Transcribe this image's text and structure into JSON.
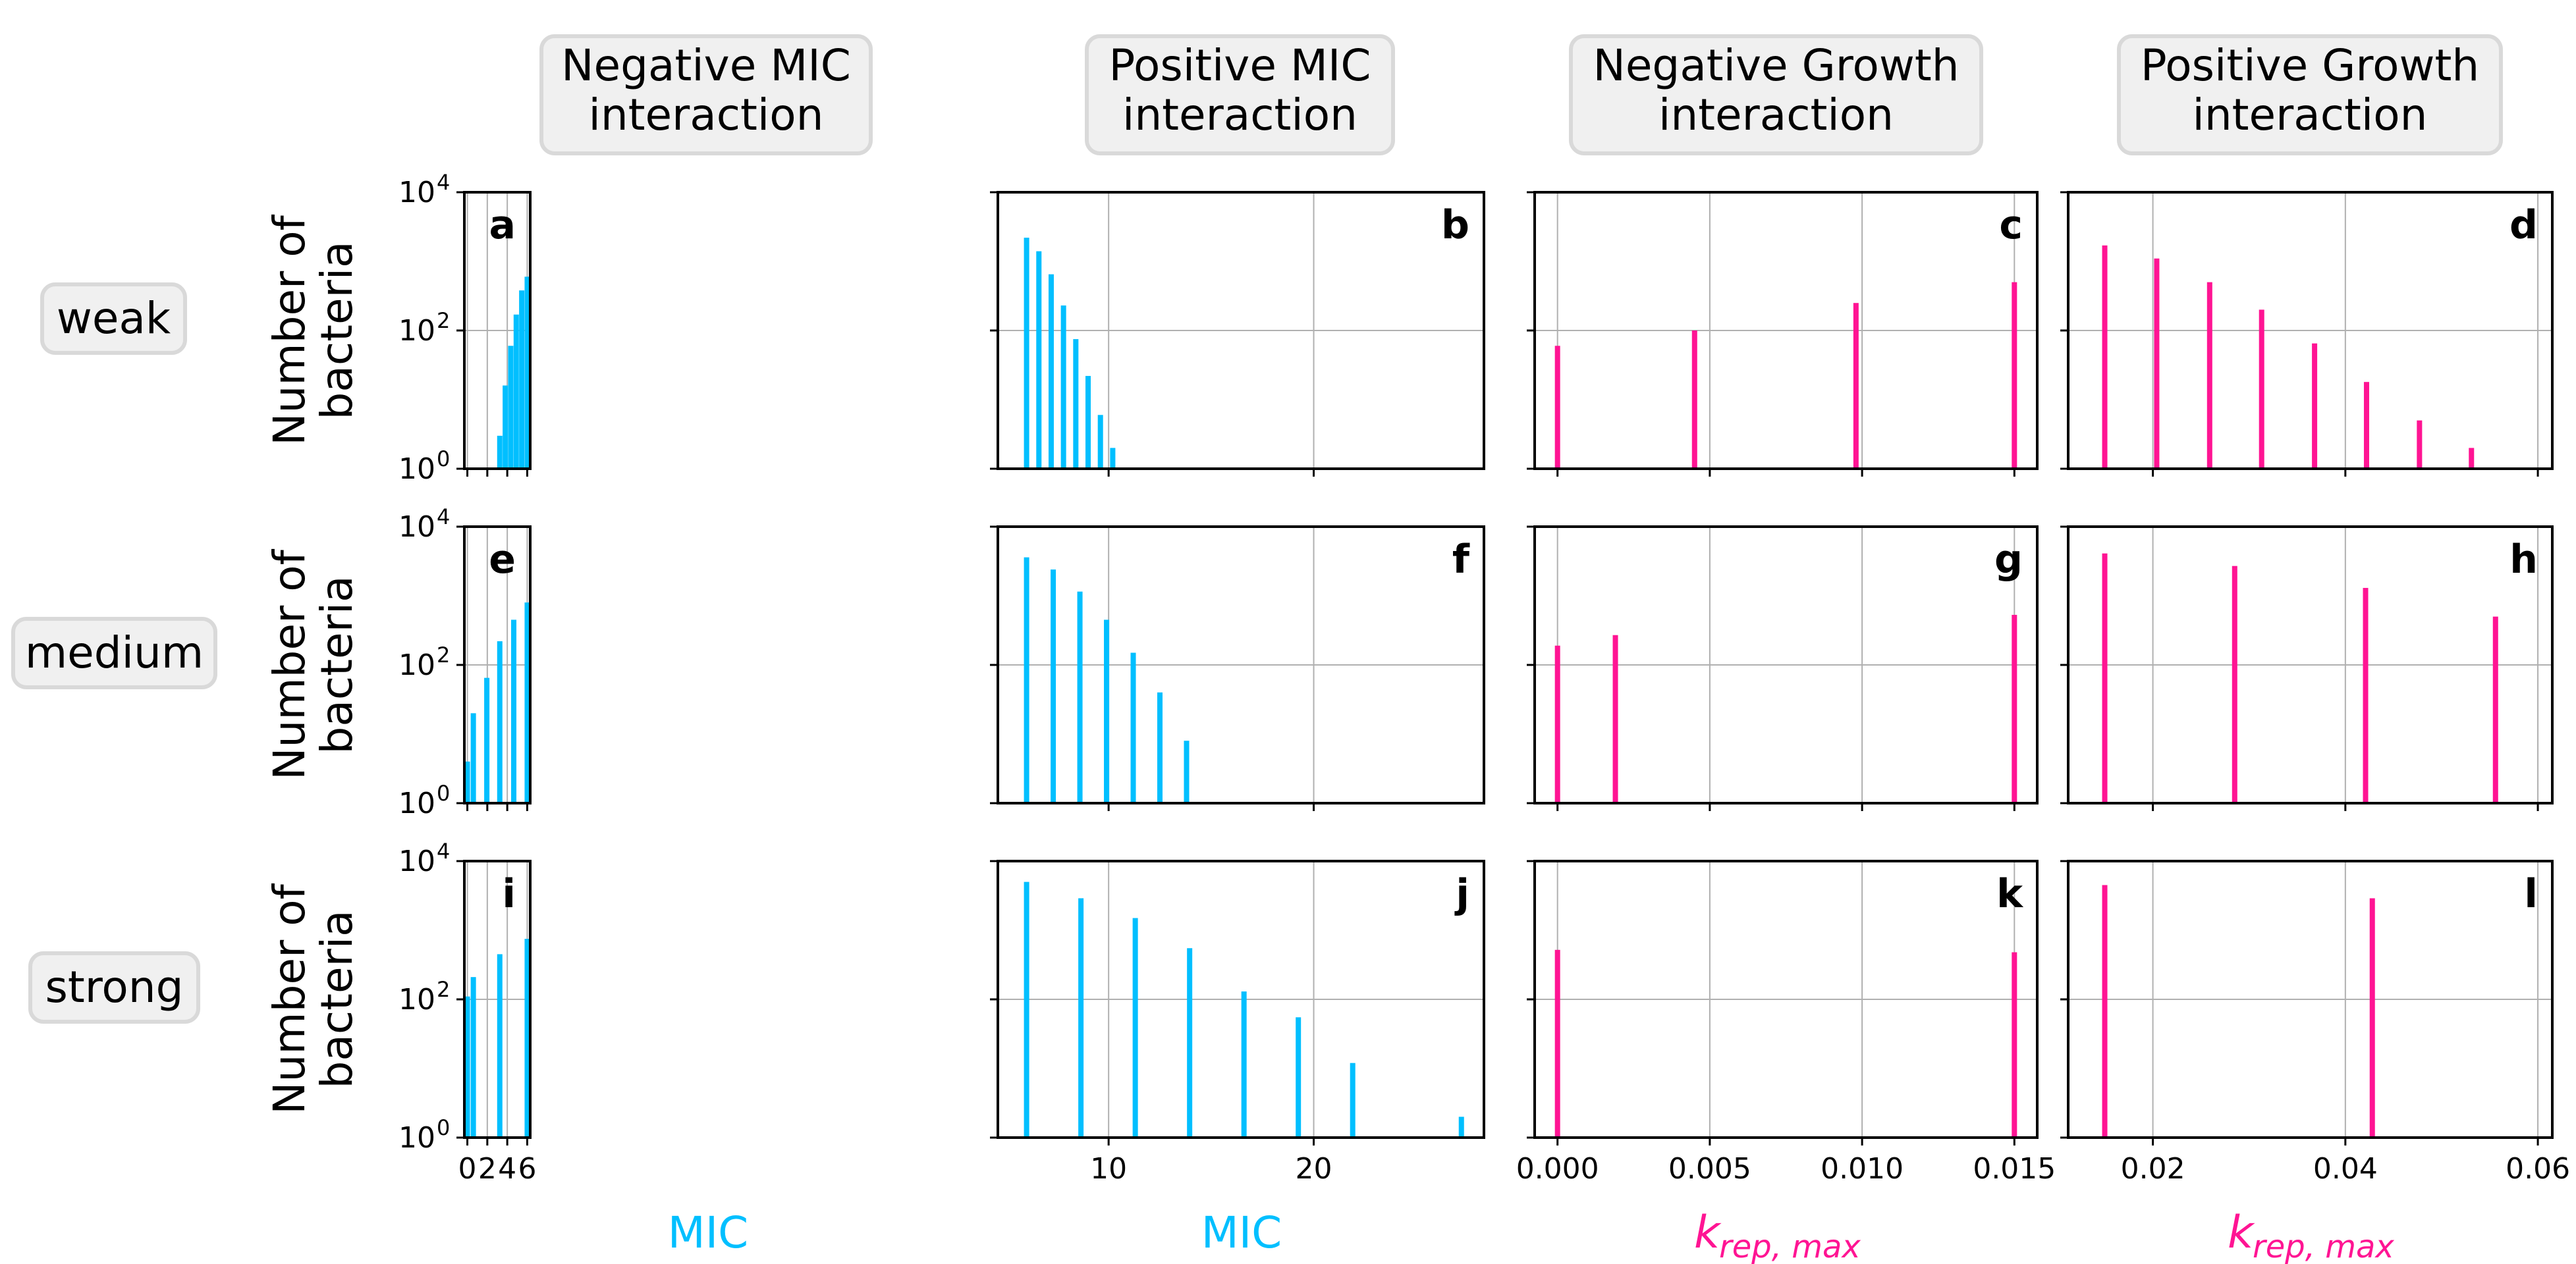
{
  "col_headers": [
    "Negative MIC\n interaction",
    "Positive MIC\n interaction",
    "Negative Growth\n interaction",
    "Positive Growth\n interaction"
  ],
  "row_labels": [
    "weak",
    "medium",
    "strong"
  ],
  "ylabel_lines": [
    "Number of",
    "bacteria"
  ],
  "xlabels": [
    "MIC",
    "MIC",
    "k_rep,max",
    "k_rep,max"
  ],
  "xlabel_display": {
    "main": "k",
    "sub": "rep, max"
  },
  "yticks": {
    "values": [
      1,
      100,
      10000
    ],
    "labels": [
      "10",
      "10",
      "10"
    ],
    "exponents": [
      "0",
      "2",
      "4"
    ]
  },
  "colors": {
    "mic": "#00BFFF",
    "growth": "#FF1493",
    "grid": "#b0b0b0",
    "header_bg": "#F0F0F0",
    "header_border": "#D9D9D9"
  },
  "chart_data": [
    {
      "type": "bar",
      "panel": "a",
      "row": "weak",
      "column": "Negative MIC interaction",
      "xlabel": "MIC",
      "ylabel": "Number of bacteria",
      "yscale": "log",
      "xlim": [
        -0.3,
        6.3
      ],
      "ylim": [
        1,
        10000
      ],
      "xticks": [
        0,
        2,
        4,
        6
      ],
      "xtick_labels": [
        "0",
        "2",
        "4",
        "6"
      ],
      "grid": true,
      "x": [
        3.25,
        3.8,
        4.35,
        4.9,
        5.45,
        6.0
      ],
      "values": [
        3,
        16,
        60,
        170,
        380,
        600
      ]
    },
    {
      "type": "bar",
      "panel": "b",
      "row": "weak",
      "column": "Positive MIC interaction",
      "xlabel": "MIC",
      "ylabel": "Number of bacteria",
      "yscale": "log",
      "xlim": [
        4.6,
        28.3
      ],
      "ylim": [
        1,
        10000
      ],
      "xticks": [
        10,
        20
      ],
      "xtick_labels": [
        "10",
        "20"
      ],
      "grid": true,
      "x": [
        6.0,
        6.6,
        7.2,
        7.8,
        8.4,
        9.0,
        9.6,
        10.2
      ],
      "values": [
        2200,
        1400,
        650,
        230,
        75,
        22,
        6,
        2
      ]
    },
    {
      "type": "bar",
      "panel": "c",
      "row": "weak",
      "column": "Negative Growth interaction",
      "xlabel": "k_rep,max",
      "ylabel": "Number of bacteria",
      "yscale": "log",
      "xlim": [
        -0.00075,
        0.01575
      ],
      "ylim": [
        1,
        10000
      ],
      "xticks": [
        0.0,
        0.005,
        0.01,
        0.015
      ],
      "xtick_labels": [
        "0.000",
        "0.005",
        "0.010",
        "0.015"
      ],
      "grid": true,
      "x": [
        0.0,
        0.0045,
        0.0098,
        0.015
      ],
      "values": [
        60,
        100,
        250,
        500
      ]
    },
    {
      "type": "bar",
      "panel": "d",
      "row": "weak",
      "column": "Positive Growth interaction",
      "xlabel": "k_rep,max",
      "ylabel": "Number of bacteria",
      "yscale": "log",
      "xlim": [
        0.0112,
        0.0615
      ],
      "ylim": [
        1,
        10000
      ],
      "xticks": [
        0.02,
        0.04,
        0.06
      ],
      "xtick_labels": [
        "0.02",
        "0.04",
        "0.06"
      ],
      "grid": true,
      "x": [
        0.015,
        0.0204,
        0.0259,
        0.0313,
        0.0368,
        0.0422,
        0.0477,
        0.0531
      ],
      "values": [
        1700,
        1100,
        500,
        200,
        65,
        18,
        5,
        2
      ]
    },
    {
      "type": "bar",
      "panel": "e",
      "row": "medium",
      "column": "Negative MIC interaction",
      "xlabel": "MIC",
      "ylabel": "Number of bacteria",
      "yscale": "log",
      "xlim": [
        -0.3,
        6.3
      ],
      "ylim": [
        1,
        10000
      ],
      "xticks": [
        0,
        2,
        4,
        6
      ],
      "xtick_labels": [
        "0",
        "2",
        "4",
        "6"
      ],
      "grid": true,
      "x": [
        0.0,
        0.6,
        1.95,
        3.25,
        4.65,
        6.0
      ],
      "values": [
        4,
        20,
        65,
        220,
        450,
        800
      ]
    },
    {
      "type": "bar",
      "panel": "f",
      "row": "medium",
      "column": "Positive MIC interaction",
      "xlabel": "MIC",
      "ylabel": "Number of bacteria",
      "yscale": "log",
      "xlim": [
        4.6,
        28.3
      ],
      "ylim": [
        1,
        10000
      ],
      "xticks": [
        10,
        20
      ],
      "xtick_labels": [
        "10",
        "20"
      ],
      "grid": true,
      "x": [
        6.0,
        7.3,
        8.6,
        9.9,
        11.2,
        12.5,
        13.8
      ],
      "values": [
        3600,
        2400,
        1150,
        450,
        150,
        40,
        8
      ]
    },
    {
      "type": "bar",
      "panel": "g",
      "row": "medium",
      "column": "Negative Growth interaction",
      "xlabel": "k_rep,max",
      "ylabel": "Number of bacteria",
      "yscale": "log",
      "xlim": [
        -0.00075,
        0.01575
      ],
      "ylim": [
        1,
        10000
      ],
      "xticks": [
        0.0,
        0.005,
        0.01,
        0.015
      ],
      "xtick_labels": [
        "0.000",
        "0.005",
        "0.010",
        "0.015"
      ],
      "grid": true,
      "x": [
        0.0,
        0.0019,
        0.015
      ],
      "values": [
        190,
        270,
        530
      ]
    },
    {
      "type": "bar",
      "panel": "h",
      "row": "medium",
      "column": "Positive Growth interaction",
      "xlabel": "k_rep,max",
      "ylabel": "Number of bacteria",
      "yscale": "log",
      "xlim": [
        0.0112,
        0.0615
      ],
      "ylim": [
        1,
        10000
      ],
      "xticks": [
        0.02,
        0.04,
        0.06
      ],
      "xtick_labels": [
        "0.02",
        "0.04",
        "0.06"
      ],
      "grid": true,
      "x": [
        0.015,
        0.0285,
        0.0421,
        0.0556
      ],
      "values": [
        4100,
        2700,
        1300,
        500
      ]
    },
    {
      "type": "bar",
      "panel": "i",
      "row": "strong",
      "column": "Negative MIC interaction",
      "xlabel": "MIC",
      "ylabel": "Number of bacteria",
      "yscale": "log",
      "xlim": [
        -0.3,
        6.3
      ],
      "ylim": [
        1,
        10000
      ],
      "xticks": [
        0,
        2,
        4,
        6
      ],
      "xtick_labels": [
        "0",
        "2",
        "4",
        "6"
      ],
      "grid": true,
      "x": [
        0.0,
        0.6,
        3.25,
        6.0
      ],
      "values": [
        110,
        210,
        450,
        750
      ]
    },
    {
      "type": "bar",
      "panel": "j",
      "row": "strong",
      "column": "Positive MIC interaction",
      "xlabel": "MIC",
      "ylabel": "Number of bacteria",
      "yscale": "log",
      "xlim": [
        4.6,
        28.3
      ],
      "ylim": [
        1,
        10000
      ],
      "xticks": [
        10,
        20
      ],
      "xtick_labels": [
        "10",
        "20"
      ],
      "grid": true,
      "x": [
        6.0,
        8.65,
        11.3,
        13.95,
        16.6,
        19.25,
        21.9,
        27.2
      ],
      "values": [
        5000,
        2900,
        1500,
        550,
        130,
        55,
        12,
        2
      ]
    },
    {
      "type": "bar",
      "panel": "k",
      "row": "strong",
      "column": "Negative Growth interaction",
      "xlabel": "k_rep,max",
      "ylabel": "Number of bacteria",
      "yscale": "log",
      "xlim": [
        -0.00075,
        0.01575
      ],
      "ylim": [
        1,
        10000
      ],
      "xticks": [
        0.0,
        0.005,
        0.01,
        0.015
      ],
      "xtick_labels": [
        "0.000",
        "0.005",
        "0.010",
        "0.015"
      ],
      "grid": true,
      "x": [
        0.0,
        0.015
      ],
      "values": [
        520,
        480
      ]
    },
    {
      "type": "bar",
      "panel": "l",
      "row": "strong",
      "column": "Positive Growth interaction",
      "xlabel": "k_rep,max",
      "ylabel": "Number of bacteria",
      "yscale": "log",
      "xlim": [
        0.0112,
        0.0615
      ],
      "ylim": [
        1,
        10000
      ],
      "xticks": [
        0.02,
        0.04,
        0.06
      ],
      "xtick_labels": [
        "0.02",
        "0.04",
        "0.06"
      ],
      "grid": true,
      "x": [
        0.015,
        0.0428
      ],
      "values": [
        4500,
        2900
      ]
    }
  ]
}
